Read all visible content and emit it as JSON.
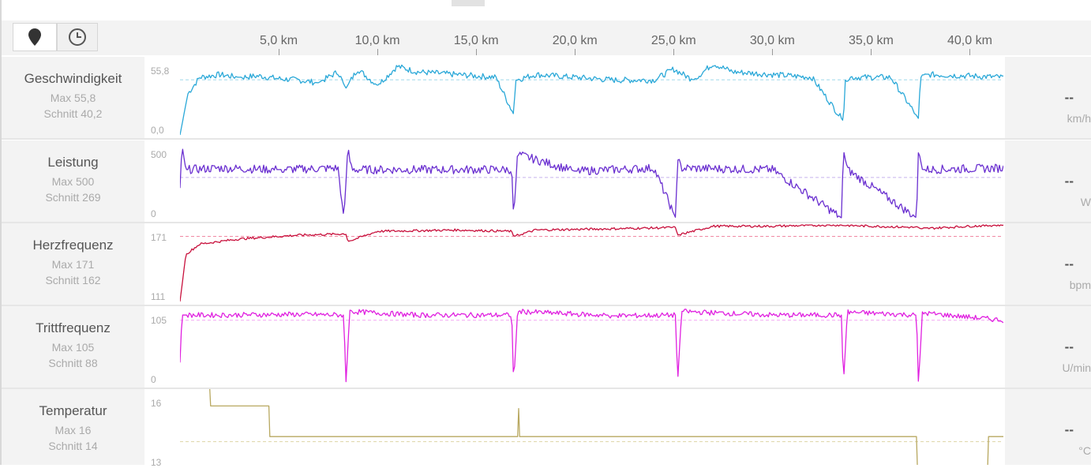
{
  "toggles": [
    {
      "name": "map-pin-icon",
      "active": true
    },
    {
      "name": "clock-icon",
      "active": false
    }
  ],
  "axis": {
    "ticks": [
      "5,0 km",
      "10,0 km",
      "15,0 km",
      "20,0 km",
      "25,0 km",
      "30,0 km",
      "35,0 km",
      "40,0 km"
    ],
    "tick_values_km": [
      5,
      10,
      15,
      20,
      25,
      30,
      35,
      40
    ],
    "max_km": 41.7
  },
  "rows": [
    {
      "id": "speed",
      "title": "Geschwindigkeit",
      "max": "Max 55,8",
      "avg": "Schnitt 40,2",
      "ytop": "55,8",
      "ybot": "0,0",
      "dash": "--",
      "unit": "km/h",
      "color": "#2aa8d8",
      "avg_color": "#9fd6ea"
    },
    {
      "id": "power",
      "title": "Leistung",
      "max": "Max 500",
      "avg": "Schnitt 269",
      "ytop": "500",
      "ybot": "0",
      "dash": "--",
      "unit": "W",
      "color": "#6a2fd0",
      "avg_color": "#c7b2ee"
    },
    {
      "id": "heart",
      "title": "Herzfrequenz",
      "max": "Max 171",
      "avg": "Schnitt 162",
      "ytop": "171",
      "ybot": "111",
      "dash": "--",
      "unit": "bpm",
      "color": "#c8103c",
      "avg_color": "#f08aa3"
    },
    {
      "id": "cadence",
      "title": "Trittfrequenz",
      "max": "Max 105",
      "avg": "Schnitt 88",
      "ytop": "105",
      "ybot": "0",
      "dash": "--",
      "unit": "U/min",
      "color": "#e020e0",
      "avg_color": "#f3a6f3"
    },
    {
      "id": "temp",
      "title": "Temperatur",
      "max": "Max 16",
      "avg": "Schnitt 14",
      "ytop": "16",
      "ybot": "13",
      "dash": "--",
      "unit": "°C",
      "color": "#b8a860",
      "avg_color": "#ddd5a5"
    }
  ],
  "chart_data": [
    {
      "type": "line",
      "ylabel": "Geschwindigkeit",
      "ylim": [
        0,
        55.8
      ],
      "avg": 40.2,
      "unit": "km/h",
      "x_km": [
        0,
        0.4,
        1,
        2,
        3,
        4,
        5,
        6,
        7,
        8,
        8.4,
        9,
        10,
        11,
        12,
        14,
        16,
        16.9,
        17,
        18,
        20,
        22,
        24,
        25,
        26,
        27,
        28,
        30,
        32,
        33.6,
        33.7,
        34,
        36,
        37.4,
        37.5,
        38,
        40,
        41.7
      ],
      "values": [
        0,
        30,
        42,
        44,
        42,
        43,
        41,
        40,
        38,
        46,
        34,
        48,
        36,
        50,
        46,
        44,
        42,
        15,
        40,
        44,
        42,
        40,
        40,
        48,
        40,
        52,
        46,
        44,
        42,
        10,
        41,
        42,
        42,
        12,
        42,
        44,
        43,
        42
      ]
    },
    {
      "type": "line",
      "ylabel": "Leistung",
      "ylim": [
        0,
        500
      ],
      "avg": 269,
      "unit": "W",
      "x_km": [
        0,
        0.1,
        0.3,
        2,
        5,
        8,
        8.3,
        8.5,
        8.7,
        10,
        14,
        16.8,
        16.9,
        17.1,
        20,
        24,
        25.1,
        25.2,
        25.4,
        30,
        33.5,
        33.6,
        33.8,
        37.3,
        37.4,
        37.6,
        41.7
      ],
      "values": [
        200,
        480,
        320,
        330,
        320,
        330,
        5,
        450,
        320,
        320,
        320,
        320,
        5,
        420,
        310,
        330,
        5,
        390,
        330,
        320,
        5,
        450,
        320,
        5,
        450,
        320,
        330
      ]
    },
    {
      "type": "line",
      "ylabel": "Herzfrequenz",
      "ylim": [
        111,
        171
      ],
      "avg": 162,
      "unit": "bpm",
      "x_km": [
        0,
        0.3,
        1,
        3,
        6,
        8.4,
        8.5,
        10,
        14,
        16.8,
        16.9,
        18,
        22,
        25.1,
        25.2,
        27,
        30,
        33,
        35,
        37.4,
        37.5,
        40,
        41.7
      ],
      "values": [
        111,
        148,
        156,
        160,
        163,
        164,
        158,
        166,
        167,
        166,
        162,
        167,
        168,
        169,
        163,
        170,
        170,
        171,
        170,
        169,
        168,
        170,
        171
      ]
    },
    {
      "type": "line",
      "ylabel": "Trittfrequenz",
      "ylim": [
        0,
        105
      ],
      "avg": 88,
      "unit": "U/min",
      "x_km": [
        0,
        0.1,
        2,
        6,
        8.3,
        8.4,
        8.6,
        12,
        16.8,
        16.9,
        17.1,
        22,
        25.1,
        25.2,
        25.4,
        30,
        33.5,
        33.6,
        33.8,
        37.3,
        37.4,
        37.6,
        41.7
      ],
      "values": [
        30,
        95,
        95,
        96,
        95,
        0,
        100,
        95,
        95,
        0,
        100,
        94,
        95,
        0,
        100,
        95,
        95,
        0,
        99,
        95,
        0,
        98,
        88
      ]
    },
    {
      "type": "line",
      "ylabel": "Temperatur",
      "ylim": [
        13,
        16
      ],
      "avg": 14,
      "unit": "°C",
      "x_km": [
        1.5,
        1.55,
        4.5,
        4.55,
        17.1,
        17.15,
        17.2,
        37.3,
        37.35,
        40.9,
        40.95,
        41.7
      ],
      "values": [
        16.2,
        15.4,
        15.4,
        14.2,
        14.2,
        15.3,
        14.2,
        14.2,
        12.9,
        12.9,
        14.2,
        14.2
      ]
    }
  ]
}
